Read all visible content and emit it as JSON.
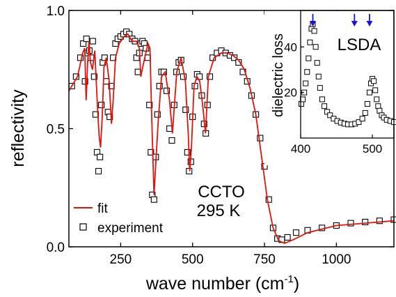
{
  "chart_data": {
    "type": "line",
    "xlabel": "wave number (cm",
    "xlabel_sup": "-1",
    "xlabel_end": ")",
    "ylabel": "reflectivity",
    "xlim": [
      70,
      1200
    ],
    "ylim": [
      0,
      1.0
    ],
    "xticks": [
      250,
      500,
      750,
      1000
    ],
    "yticks": [
      0.0,
      0.5,
      1.0
    ],
    "ytick_labels": [
      "0.0",
      "0.5",
      "1.0"
    ],
    "annotations": {
      "material": "CCTO",
      "temperature": "295 K"
    },
    "legend": {
      "placement": "bottom-left",
      "entries": [
        "fit",
        "experiment"
      ]
    },
    "series": [
      {
        "name": "fit",
        "style": "line",
        "color": "#e3120b",
        "x": [
          70,
          100,
          118,
          125,
          130,
          135,
          140,
          145,
          152,
          160,
          165,
          170,
          175,
          180,
          186,
          192,
          200,
          210,
          218,
          224,
          232,
          245,
          262,
          275,
          290,
          305,
          315,
          320,
          330,
          345,
          352,
          358,
          366,
          380,
          392,
          405,
          420,
          430,
          445,
          460,
          475,
          485,
          490,
          496,
          505,
          515,
          525,
          535,
          545,
          555,
          575,
          600,
          620,
          640,
          660,
          680,
          700,
          720,
          740,
          760,
          780,
          800,
          820,
          850,
          900,
          1000,
          1100,
          1200
        ],
        "y": [
          0.66,
          0.72,
          0.82,
          0.84,
          0.62,
          0.78,
          0.87,
          0.78,
          0.75,
          0.83,
          0.7,
          0.58,
          0.47,
          0.42,
          0.55,
          0.76,
          0.8,
          0.7,
          0.52,
          0.62,
          0.8,
          0.86,
          0.89,
          0.9,
          0.87,
          0.87,
          0.84,
          0.72,
          0.78,
          0.86,
          0.84,
          0.55,
          0.22,
          0.52,
          0.72,
          0.74,
          0.62,
          0.48,
          0.74,
          0.8,
          0.7,
          0.48,
          0.32,
          0.42,
          0.68,
          0.72,
          0.7,
          0.6,
          0.48,
          0.72,
          0.8,
          0.82,
          0.82,
          0.81,
          0.79,
          0.75,
          0.67,
          0.56,
          0.38,
          0.2,
          0.08,
          0.025,
          0.015,
          0.03,
          0.06,
          0.09,
          0.1,
          0.11
        ]
      },
      {
        "name": "experiment",
        "style": "open-square",
        "color": "#000000",
        "x": [
          80,
          95,
          110,
          120,
          126,
          131,
          136,
          141,
          147,
          153,
          158,
          163,
          168,
          173,
          178,
          183,
          188,
          194,
          200,
          206,
          212,
          218,
          224,
          232,
          240,
          250,
          260,
          270,
          280,
          290,
          300,
          305,
          310,
          315,
          320,
          326,
          332,
          338,
          344,
          350,
          355,
          360,
          366,
          372,
          378,
          385,
          392,
          400,
          410,
          420,
          428,
          436,
          444,
          452,
          460,
          468,
          476,
          482,
          488,
          494,
          500,
          508,
          516,
          524,
          532,
          540,
          546,
          552,
          560,
          570,
          585,
          600,
          615,
          630,
          645,
          660,
          675,
          690,
          705,
          720,
          735,
          750,
          765,
          780,
          795,
          810,
          830,
          860,
          900,
          950,
          1000,
          1050,
          1100,
          1150,
          1200
        ],
        "y": [
          0.68,
          0.72,
          0.8,
          0.86,
          0.7,
          0.88,
          0.82,
          0.83,
          0.8,
          0.87,
          0.72,
          0.56,
          0.4,
          0.32,
          0.38,
          0.6,
          0.78,
          0.8,
          0.7,
          0.57,
          0.55,
          0.68,
          0.8,
          0.86,
          0.88,
          0.89,
          0.9,
          0.91,
          0.9,
          0.88,
          0.87,
          0.8,
          0.74,
          0.82,
          0.86,
          0.87,
          0.86,
          0.84,
          0.8,
          0.6,
          0.4,
          0.22,
          0.2,
          0.38,
          0.56,
          0.68,
          0.74,
          0.74,
          0.66,
          0.5,
          0.45,
          0.6,
          0.74,
          0.78,
          0.79,
          0.72,
          0.58,
          0.4,
          0.32,
          0.36,
          0.55,
          0.68,
          0.73,
          0.72,
          0.64,
          0.52,
          0.48,
          0.6,
          0.72,
          0.8,
          0.82,
          0.83,
          0.82,
          0.81,
          0.8,
          0.78,
          0.74,
          0.7,
          0.64,
          0.56,
          0.46,
          0.34,
          0.2,
          0.08,
          0.035,
          0.03,
          0.04,
          0.06,
          0.07,
          0.08,
          0.09,
          0.1,
          0.105,
          0.11,
          0.115
        ]
      }
    ],
    "inset": {
      "type": "scatter",
      "ylabel": "dielectric loss",
      "xlim": [
        400,
        530
      ],
      "ylim": [
        0,
        56
      ],
      "xticks": [
        400,
        500
      ],
      "yticks": [
        20,
        40
      ],
      "marker": "open-square",
      "label": "LSDA",
      "label_color": "#1515d6",
      "arrow_positions": [
        417,
        475,
        496
      ],
      "x": [
        401,
        403,
        405,
        407,
        409,
        411,
        413,
        415,
        417,
        419,
        421,
        423,
        425,
        427,
        430,
        433,
        437,
        441,
        446,
        451,
        456,
        461,
        466,
        471,
        476,
        481,
        486,
        490,
        493,
        496,
        498,
        500,
        502,
        504,
        506,
        508,
        510,
        513,
        516,
        520,
        525,
        530
      ],
      "y": [
        15,
        17,
        20,
        24,
        29,
        35,
        42,
        48,
        50,
        47,
        40,
        33,
        27,
        22,
        17,
        14,
        11.5,
        10,
        8.5,
        7.5,
        6.8,
        6.3,
        6.0,
        6.0,
        6.3,
        7.0,
        8.5,
        11,
        15,
        20,
        24,
        26,
        25,
        21,
        17,
        14,
        12,
        10,
        9,
        8,
        7.5,
        7
      ]
    }
  }
}
